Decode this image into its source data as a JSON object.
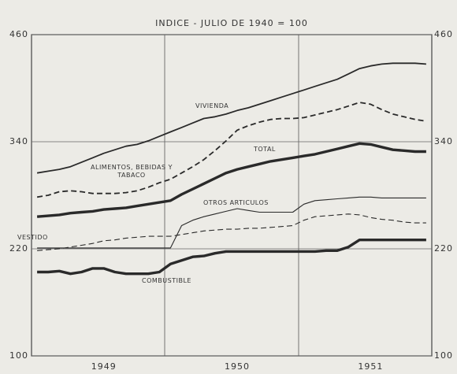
{
  "chart_data": {
    "type": "line",
    "title": "INDICE - JULIO DE 1940 = 100",
    "categories": [
      null,
      null,
      null,
      null,
      null,
      null,
      "1949",
      null,
      null,
      null,
      null,
      null,
      null,
      null,
      null,
      null,
      null,
      null,
      "1950",
      null,
      null,
      null,
      null,
      null,
      null,
      null,
      null,
      null,
      null,
      null,
      "1951",
      null,
      null,
      null,
      null,
      null
    ],
    "ylim": [
      100,
      460
    ],
    "yticks": [
      100,
      220,
      340,
      460
    ],
    "grid": true,
    "series": [
      {
        "name": "VIVIENDA",
        "color": "#2a2a2a",
        "line_style": "solid",
        "weight": "medium",
        "values": [
          305,
          307,
          309,
          312,
          317,
          322,
          327,
          331,
          335,
          337,
          341,
          346,
          351,
          356,
          361,
          366,
          368,
          371,
          375,
          378,
          382,
          386,
          390,
          394,
          398,
          402,
          406,
          410,
          416,
          422,
          425,
          427,
          428,
          428,
          428,
          427
        ]
      },
      {
        "name": "ALIMENTOS, BEBIDAS Y TABACO",
        "color": "#2a2a2a",
        "line_style": "dashed",
        "weight": "medium",
        "values": [
          278,
          280,
          284,
          285,
          284,
          282,
          282,
          282,
          283,
          285,
          289,
          294,
          298,
          305,
          312,
          320,
          330,
          341,
          353,
          358,
          362,
          365,
          366,
          366,
          367,
          370,
          373,
          376,
          380,
          384,
          382,
          376,
          371,
          368,
          365,
          363
        ]
      },
      {
        "name": "TOTAL",
        "color": "#2a2a2a",
        "line_style": "solid",
        "weight": "thick",
        "values": [
          256,
          257,
          258,
          260,
          261,
          262,
          264,
          265,
          266,
          268,
          270,
          272,
          274,
          281,
          287,
          293,
          299,
          305,
          309,
          312,
          315,
          318,
          320,
          322,
          324,
          326,
          329,
          332,
          335,
          338,
          337,
          334,
          331,
          330,
          329,
          329
        ]
      },
      {
        "name": "OTROS ARTICULOS",
        "color": "#2a2a2a",
        "line_style": "solid",
        "weight": "thin",
        "values": [
          221,
          221,
          221,
          221,
          221,
          221,
          221,
          221,
          221,
          221,
          221,
          221,
          221,
          246,
          252,
          256,
          259,
          262,
          265,
          263,
          261,
          261,
          261,
          261,
          270,
          274,
          275,
          276,
          277,
          278,
          278,
          277,
          277,
          277,
          277,
          277
        ]
      },
      {
        "name": "VESTIDO",
        "color": "#2a2a2a",
        "line_style": "dashed",
        "weight": "thin",
        "values": [
          218,
          219,
          220,
          222,
          224,
          226,
          229,
          230,
          232,
          233,
          234,
          234,
          234,
          236,
          238,
          240,
          241,
          242,
          242,
          243,
          243,
          244,
          245,
          246,
          252,
          256,
          257,
          258,
          259,
          258,
          255,
          253,
          252,
          250,
          249,
          249
        ]
      },
      {
        "name": "COMBUSTIBLE",
        "color": "#2a2a2a",
        "line_style": "solid",
        "weight": "thick",
        "values": [
          194,
          194,
          195,
          192,
          194,
          198,
          198,
          194,
          192,
          192,
          192,
          194,
          203,
          207,
          211,
          212,
          215,
          217,
          217,
          217,
          217,
          217,
          217,
          217,
          217,
          217,
          218,
          218,
          222,
          230,
          230,
          230,
          230,
          230,
          230,
          230
        ]
      }
    ]
  }
}
